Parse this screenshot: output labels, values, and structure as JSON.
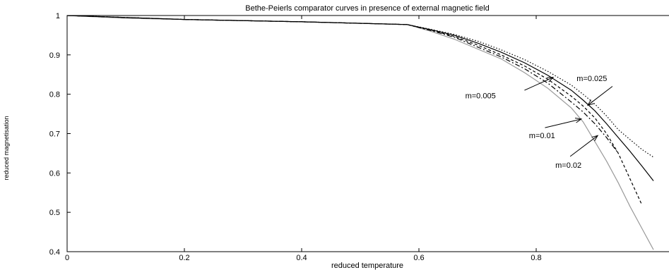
{
  "chart_data": {
    "type": "line",
    "title": "Bethe-Peierls comparator curves in presence of external magnetic field",
    "xlabel": "reduced temperature",
    "ylabel": "reduced magnetisation",
    "xlim": [
      0,
      1
    ],
    "ylim": [
      0.4,
      1
    ],
    "xticks": [
      {
        "value": 0,
        "label": "0"
      },
      {
        "value": 0.2,
        "label": "0.2"
      },
      {
        "value": 0.4,
        "label": "0.4"
      },
      {
        "value": 0.6,
        "label": "0.6"
      },
      {
        "value": 0.8,
        "label": "0.8"
      }
    ],
    "yticks": [
      {
        "value": 0.4,
        "label": "0.4"
      },
      {
        "value": 0.5,
        "label": "0.5"
      },
      {
        "value": 0.6,
        "label": "0.6"
      },
      {
        "value": 0.7,
        "label": "0.7"
      },
      {
        "value": 0.8,
        "label": "0.8"
      },
      {
        "value": 0.9,
        "label": "0.9"
      },
      {
        "value": 1,
        "label": "1"
      }
    ],
    "grid": false,
    "series": [
      {
        "color": "#999999",
        "dash": "",
        "points": [
          [
            0,
            1
          ],
          [
            0.1,
            0.993
          ],
          [
            0.2,
            0.99
          ],
          [
            0.3,
            0.987
          ],
          [
            0.4,
            0.984
          ],
          [
            0.5,
            0.98
          ],
          [
            0.58,
            0.977
          ],
          [
            0.62,
            0.96
          ],
          [
            0.66,
            0.94
          ],
          [
            0.7,
            0.915
          ],
          [
            0.74,
            0.89
          ],
          [
            0.78,
            0.855
          ],
          [
            0.82,
            0.815
          ],
          [
            0.86,
            0.765
          ],
          [
            0.88,
            0.73
          ],
          [
            0.9,
            0.68
          ],
          [
            0.92,
            0.63
          ],
          [
            0.94,
            0.575
          ],
          [
            0.96,
            0.515
          ],
          [
            0.98,
            0.46
          ],
          [
            1.0,
            0.405
          ]
        ]
      },
      {
        "color": "#000000",
        "dash": "7,3,2,3",
        "points": [
          [
            0,
            1
          ],
          [
            0.2,
            0.99
          ],
          [
            0.4,
            0.984
          ],
          [
            0.58,
            0.977
          ],
          [
            0.62,
            0.962
          ],
          [
            0.66,
            0.945
          ],
          [
            0.7,
            0.92
          ],
          [
            0.74,
            0.895
          ],
          [
            0.78,
            0.865
          ],
          [
            0.82,
            0.828
          ],
          [
            0.86,
            0.78
          ],
          [
            0.88,
            0.755
          ],
          [
            0.9,
            0.725
          ],
          [
            0.92,
            0.69
          ],
          [
            0.94,
            0.65
          ]
        ]
      },
      {
        "color": "#000000",
        "dash": "4,3",
        "points": [
          [
            0,
            1
          ],
          [
            0.2,
            0.99
          ],
          [
            0.4,
            0.984
          ],
          [
            0.58,
            0.977
          ],
          [
            0.62,
            0.963
          ],
          [
            0.66,
            0.947
          ],
          [
            0.7,
            0.925
          ],
          [
            0.74,
            0.9
          ],
          [
            0.78,
            0.872
          ],
          [
            0.82,
            0.838
          ],
          [
            0.86,
            0.795
          ],
          [
            0.88,
            0.77
          ],
          [
            0.9,
            0.74
          ],
          [
            0.92,
            0.7
          ],
          [
            0.94,
            0.65
          ],
          [
            0.96,
            0.585
          ],
          [
            0.98,
            0.52
          ]
        ]
      },
      {
        "color": "#000000",
        "dash": "",
        "points": [
          [
            0,
            1
          ],
          [
            0.2,
            0.99
          ],
          [
            0.4,
            0.984
          ],
          [
            0.58,
            0.977
          ],
          [
            0.62,
            0.964
          ],
          [
            0.66,
            0.95
          ],
          [
            0.7,
            0.93
          ],
          [
            0.74,
            0.907
          ],
          [
            0.78,
            0.88
          ],
          [
            0.82,
            0.848
          ],
          [
            0.86,
            0.81
          ],
          [
            0.88,
            0.785
          ],
          [
            0.9,
            0.758
          ],
          [
            0.92,
            0.725
          ],
          [
            0.94,
            0.69
          ],
          [
            0.96,
            0.655
          ],
          [
            0.98,
            0.618
          ],
          [
            1.0,
            0.58
          ]
        ]
      },
      {
        "color": "#000000",
        "dash": "1.5,2.5",
        "points": [
          [
            0,
            1
          ],
          [
            0.2,
            0.99
          ],
          [
            0.4,
            0.984
          ],
          [
            0.58,
            0.977
          ],
          [
            0.62,
            0.965
          ],
          [
            0.66,
            0.952
          ],
          [
            0.7,
            0.935
          ],
          [
            0.74,
            0.913
          ],
          [
            0.78,
            0.888
          ],
          [
            0.82,
            0.858
          ],
          [
            0.86,
            0.823
          ],
          [
            0.88,
            0.8
          ],
          [
            0.9,
            0.775
          ],
          [
            0.92,
            0.745
          ],
          [
            0.94,
            0.71
          ],
          [
            0.96,
            0.685
          ],
          [
            0.98,
            0.66
          ],
          [
            1.0,
            0.64
          ]
        ]
      }
    ],
    "annotations": [
      {
        "text": "m=0.005",
        "text_x": 0.705,
        "text_y": 0.79,
        "from_x": 0.78,
        "from_y": 0.81,
        "to_x": 0.829,
        "to_y": 0.843
      },
      {
        "text": "m=0.01",
        "text_x": 0.81,
        "text_y": 0.688,
        "from_x": 0.815,
        "from_y": 0.715,
        "to_x": 0.877,
        "to_y": 0.737
      },
      {
        "text": "m=0.02",
        "text_x": 0.855,
        "text_y": 0.613,
        "from_x": 0.858,
        "from_y": 0.642,
        "to_x": 0.905,
        "to_y": 0.695
      },
      {
        "text": "m=0.025",
        "text_x": 0.895,
        "text_y": 0.833,
        "from_x": 0.93,
        "from_y": 0.82,
        "to_x": 0.888,
        "to_y": 0.772
      }
    ]
  }
}
